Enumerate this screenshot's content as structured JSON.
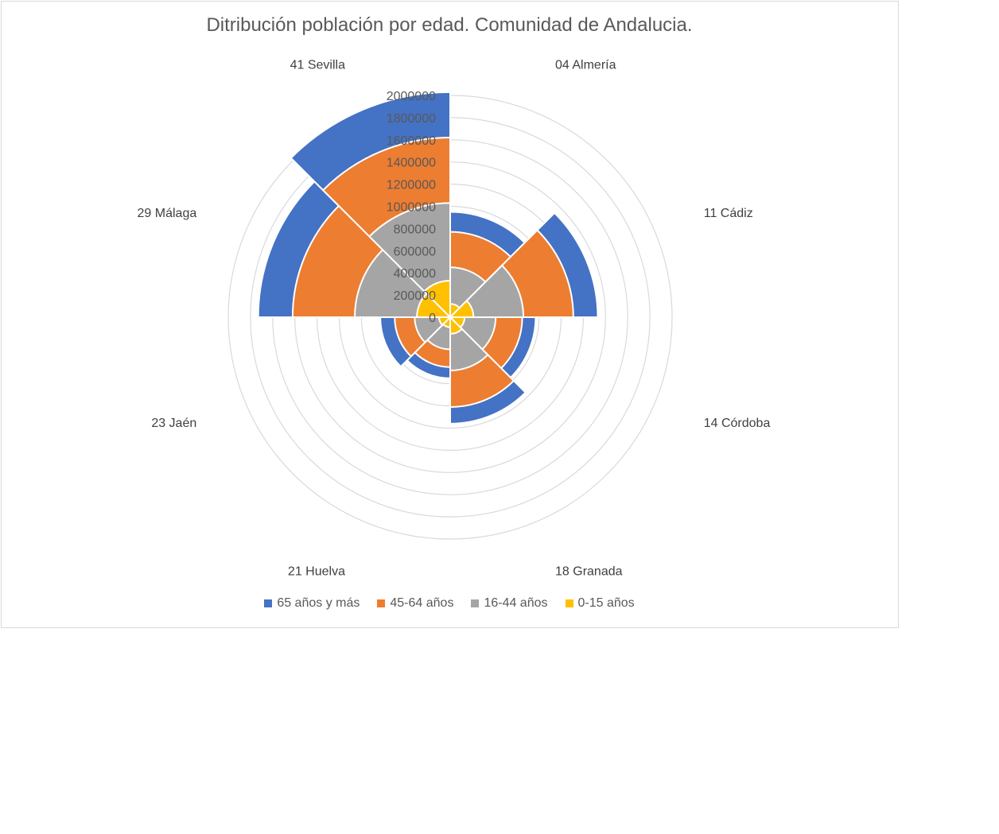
{
  "chart_data": {
    "type": "polar-area",
    "title": "Ditribución población por edad. Comunidad de Andalucia.",
    "categories": [
      "04 Almería",
      "11 Cádiz",
      "14 Córdoba",
      "18 Granada",
      "21 Huelva",
      "23 Jaén",
      "29 Málaga",
      "41 Sevilla"
    ],
    "stacked": true,
    "r_ticks": [
      "0",
      "200000",
      "400000",
      "600000",
      "800000",
      "1000000",
      "1200000",
      "1400000",
      "1600000",
      "1800000",
      "2000000"
    ],
    "rlim": [
      0,
      2000000
    ],
    "series": [
      {
        "name": "0-15 años",
        "color": "#FFC000",
        "values": [
          120000,
          210000,
          130000,
          150000,
          90000,
          100000,
          300000,
          330000
        ]
      },
      {
        "name": "16-44 años",
        "color": "#A5A5A5",
        "values": [
          330000,
          450000,
          280000,
          330000,
          200000,
          220000,
          560000,
          700000
        ]
      },
      {
        "name": "45-64 años",
        "color": "#ED7D31",
        "values": [
          320000,
          450000,
          240000,
          330000,
          160000,
          180000,
          560000,
          590000
        ]
      },
      {
        "name": "65 años y más",
        "color": "#4472C4",
        "values": [
          180000,
          220000,
          120000,
          150000,
          100000,
          130000,
          310000,
          410000
        ]
      }
    ],
    "legend_order": [
      "65 años y más",
      "45-64 años",
      "16-44 años",
      "0-15 años"
    ],
    "legend_position": "bottom",
    "grid": true
  }
}
